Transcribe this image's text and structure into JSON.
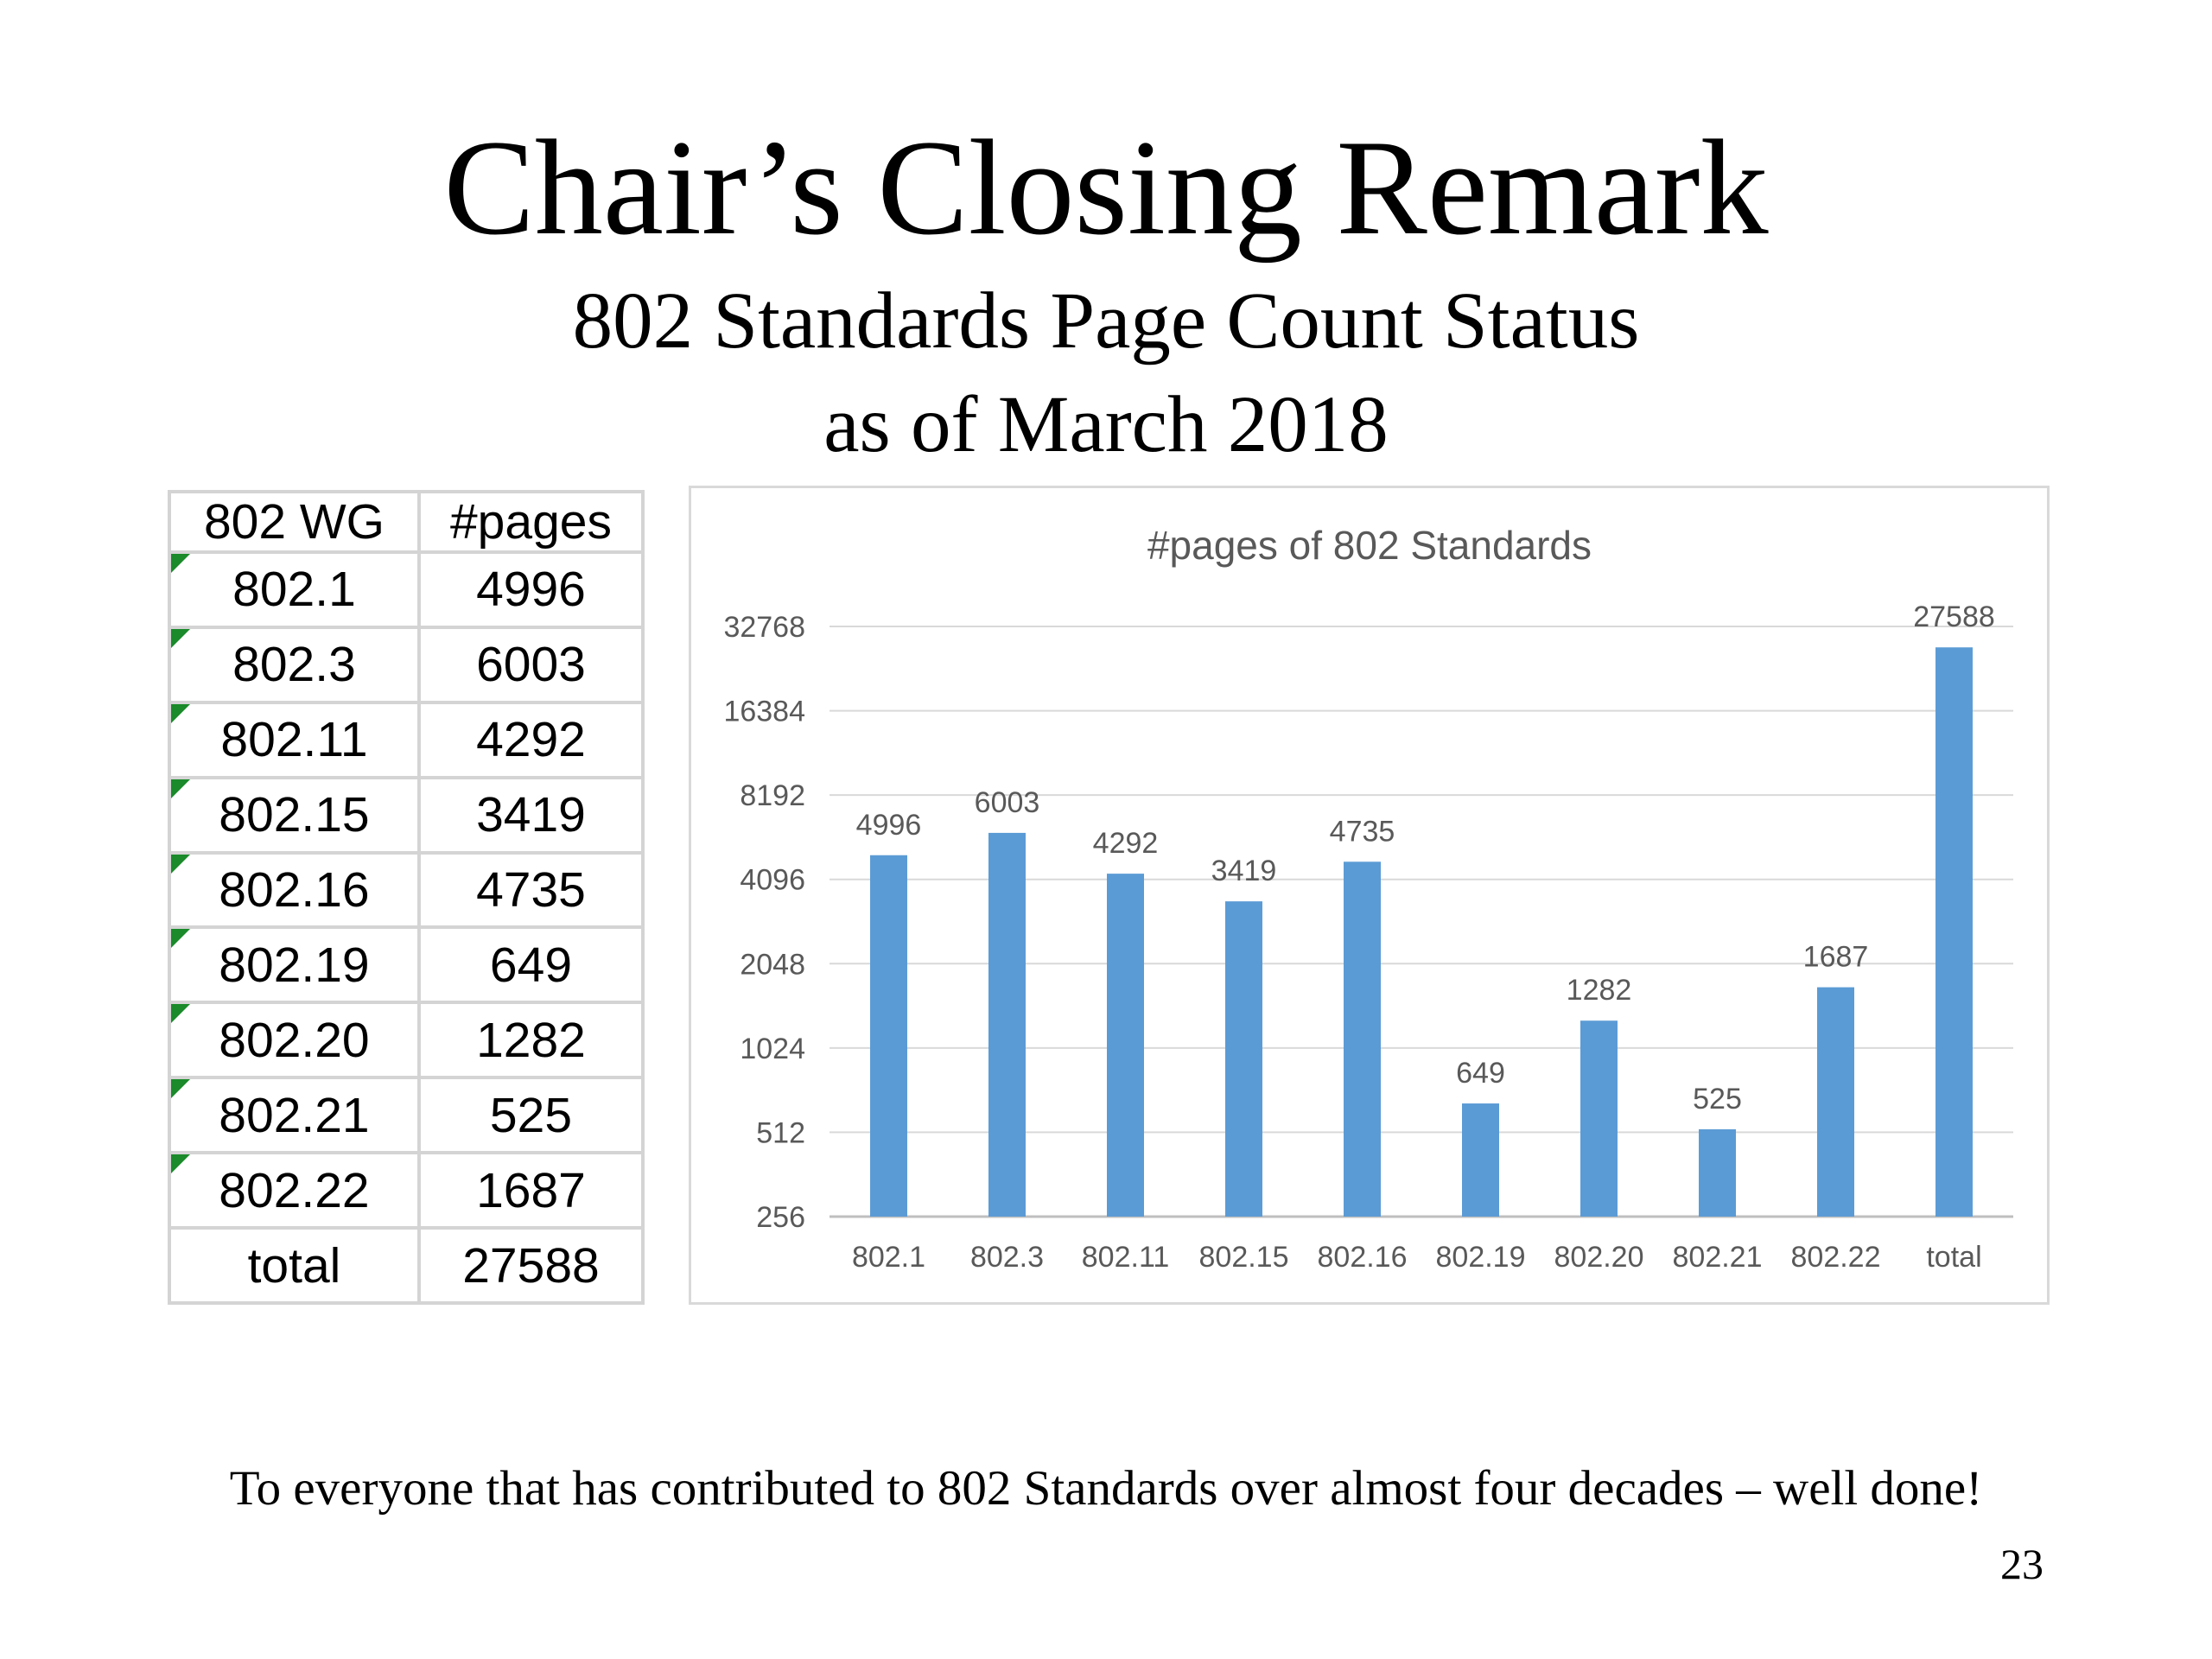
{
  "slide": {
    "title": "Chair’s Closing Remark",
    "subtitle_line1": "802 Standards Page Count Status",
    "subtitle_line2": "as of March 2018",
    "footer": "To everyone that has contributed to 802 Standards over almost four decades – well done!",
    "page_number": "23"
  },
  "table": {
    "headers": [
      "802 WG",
      "#pages"
    ],
    "rows": [
      {
        "wg": "802.1",
        "pages": "4996"
      },
      {
        "wg": "802.3",
        "pages": "6003"
      },
      {
        "wg": "802.11",
        "pages": "4292"
      },
      {
        "wg": "802.15",
        "pages": "3419"
      },
      {
        "wg": "802.16",
        "pages": "4735"
      },
      {
        "wg": "802.19",
        "pages": "649"
      },
      {
        "wg": "802.20",
        "pages": "1282"
      },
      {
        "wg": "802.21",
        "pages": "525"
      },
      {
        "wg": "802.22",
        "pages": "1687"
      },
      {
        "wg": "total",
        "pages": "27588"
      }
    ],
    "indicator_color": "#1a8a2a"
  },
  "chart_data": {
    "type": "bar",
    "title": "#pages of 802 Standards",
    "categories": [
      "802.1",
      "802.3",
      "802.11",
      "802.15",
      "802.16",
      "802.19",
      "802.20",
      "802.21",
      "802.22",
      "total"
    ],
    "values": [
      4996,
      6003,
      4292,
      3419,
      4735,
      649,
      1282,
      525,
      1687,
      27588
    ],
    "y_scale": "log2",
    "y_ticks": [
      256,
      512,
      1024,
      2048,
      4096,
      8192,
      16384,
      32768
    ],
    "ylim": [
      256,
      32768
    ],
    "grid": true,
    "legend": "none",
    "bar_color": "#5b9bd5",
    "xlabel": "",
    "ylabel": ""
  }
}
